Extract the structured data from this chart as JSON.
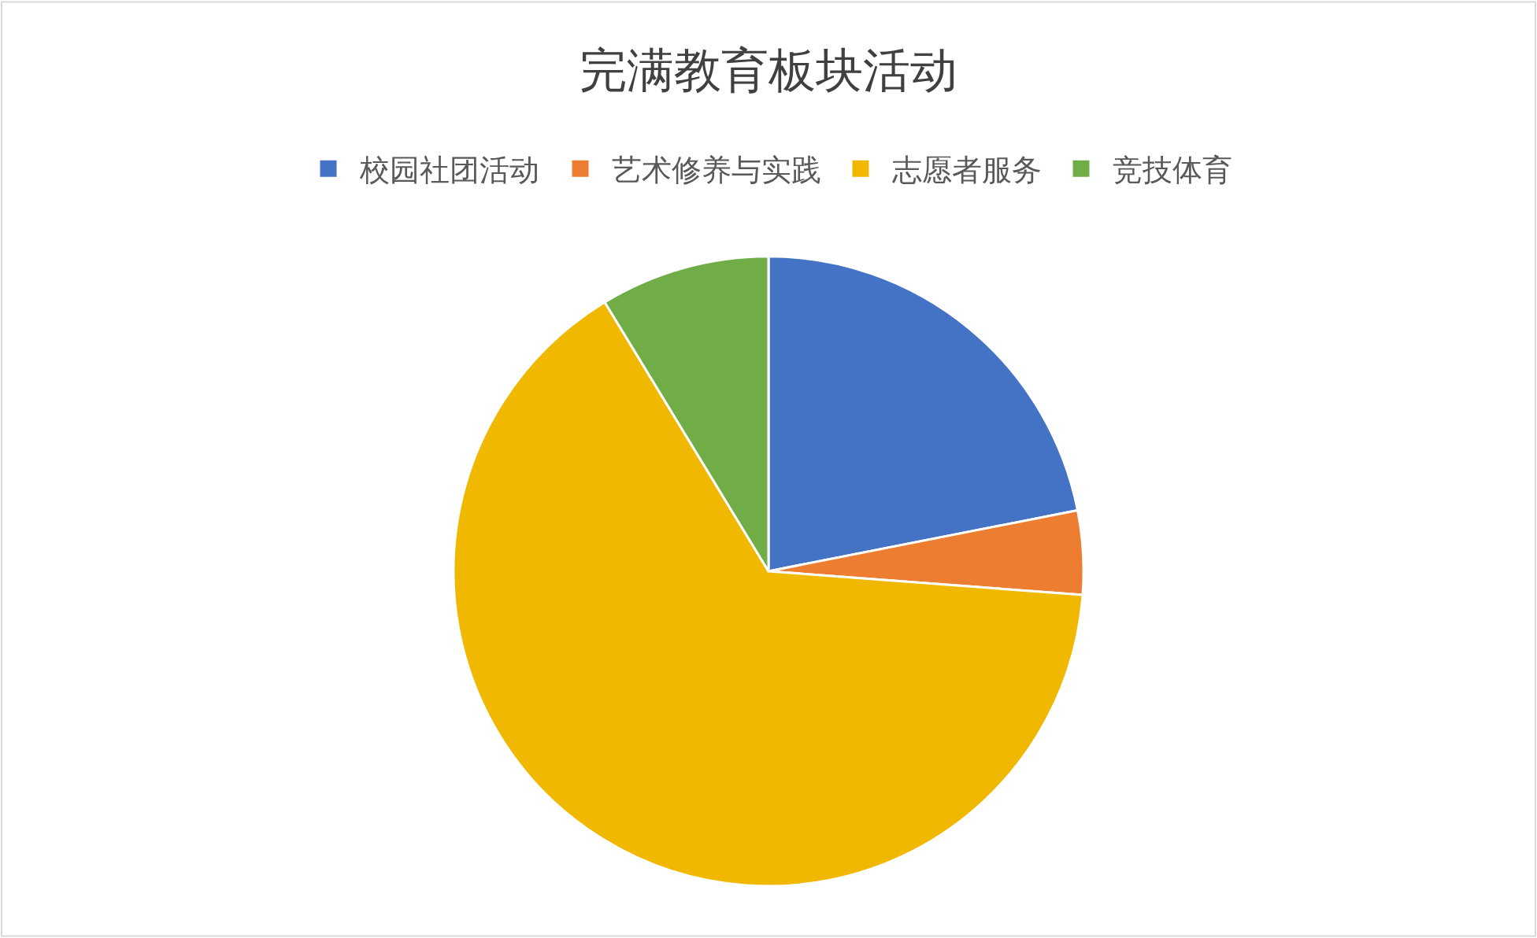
{
  "chart_data": {
    "type": "pie",
    "title": "完满教育板块活动",
    "categories": [
      "校园社团活动",
      "艺术修养与实践",
      "志愿者服务",
      "竞技体育"
    ],
    "values": [
      21.9,
      4.3,
      65.1,
      8.7
    ],
    "colors": [
      "#4472c4",
      "#ed7d31",
      "#f0b800",
      "#70ad47"
    ],
    "legend": "top"
  }
}
